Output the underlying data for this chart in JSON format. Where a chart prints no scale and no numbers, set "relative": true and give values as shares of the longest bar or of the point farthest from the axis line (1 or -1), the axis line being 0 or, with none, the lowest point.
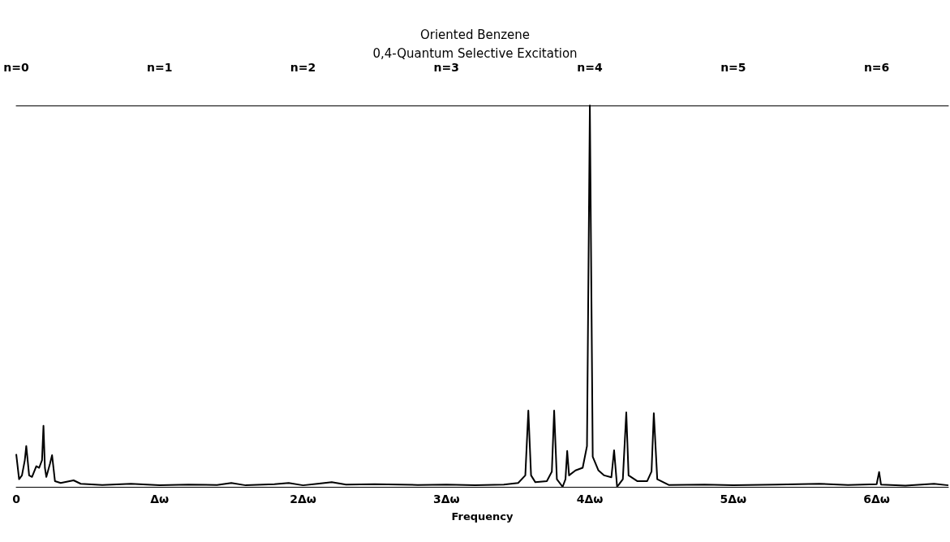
{
  "chart_data": {
    "type": "line",
    "title": "Oriented Benzene",
    "subtitle": "0,4-Quantum Selective Excitation",
    "xlabel": "Frequency",
    "relative": true,
    "grid": false,
    "marker": "none",
    "line_style": "solid",
    "xlim": [
      0,
      6.5
    ],
    "xticks": [
      0,
      {
        "value": 1,
        "label": "Δω"
      },
      {
        "value": 2,
        "label": "2Δω"
      },
      {
        "value": 3,
        "label": "3Δω"
      },
      {
        "value": 4,
        "label": "4Δω"
      },
      {
        "value": 5,
        "label": "5Δω"
      },
      {
        "value": 6,
        "label": "6Δω"
      }
    ],
    "x2lim": [
      0,
      6.5
    ],
    "x2ticks": [
      {
        "value": 0,
        "label": "n=0"
      },
      {
        "value": 1,
        "label": "n=1"
      },
      {
        "value": 2,
        "label": "n=2"
      },
      {
        "value": 3,
        "label": "n=3"
      },
      {
        "value": 4,
        "label": "n=4"
      },
      {
        "value": 5,
        "label": "n=5"
      },
      {
        "value": 6,
        "label": "n=6"
      }
    ],
    "tick_labels": "x",
    "series": [
      {
        "color": "#000000",
        "x": [
          0,
          0.02,
          0.04,
          0.06,
          0.07,
          0.09,
          0.11,
          0.14,
          0.16,
          0.18,
          0.19,
          0.2,
          0.21,
          0.235,
          0.25,
          0.27,
          0.31,
          0.4,
          0.45,
          0.6,
          0.8,
          1.0,
          1.2,
          1.4,
          1.5,
          1.6,
          1.8,
          1.9,
          2.0,
          2.1,
          2.2,
          2.3,
          2.5,
          2.8,
          3.0,
          3.2,
          3.4,
          3.5,
          3.55,
          3.571,
          3.59,
          3.62,
          3.7,
          3.735,
          3.751,
          3.77,
          3.81,
          3.83,
          3.842,
          3.855,
          3.9,
          3.95,
          3.98,
          4.0,
          4.02,
          4.06,
          4.1,
          4.15,
          4.169,
          4.19,
          4.23,
          4.254,
          4.27,
          4.33,
          4.4,
          4.43,
          4.446,
          4.47,
          4.55,
          4.8,
          5.0,
          5.3,
          5.6,
          5.8,
          6.0,
          6.017,
          6.03,
          6.2,
          6.4,
          6.5
        ],
        "values": [
          0.086,
          0.02,
          0.03,
          0.07,
          0.107,
          0.03,
          0.026,
          0.054,
          0.05,
          0.07,
          0.16,
          0.05,
          0.026,
          0.06,
          0.083,
          0.015,
          0.01,
          0.017,
          0.008,
          0.005,
          0.008,
          0.004,
          0.006,
          0.005,
          0.01,
          0.004,
          0.007,
          0.01,
          0.004,
          0.008,
          0.012,
          0.006,
          0.007,
          0.005,
          0.006,
          0.004,
          0.006,
          0.01,
          0.03,
          0.2,
          0.03,
          0.012,
          0.015,
          0.04,
          0.2,
          0.02,
          0,
          0.02,
          0.094,
          0.03,
          0.043,
          0.05,
          0.107,
          1.0,
          0.079,
          0.043,
          0.03,
          0.025,
          0.096,
          0,
          0.02,
          0.195,
          0.03,
          0.015,
          0.015,
          0.04,
          0.193,
          0.02,
          0.005,
          0.006,
          0.004,
          0.006,
          0.008,
          0.005,
          0.007,
          0.039,
          0.006,
          0.003,
          0.008,
          0.004
        ]
      }
    ]
  }
}
